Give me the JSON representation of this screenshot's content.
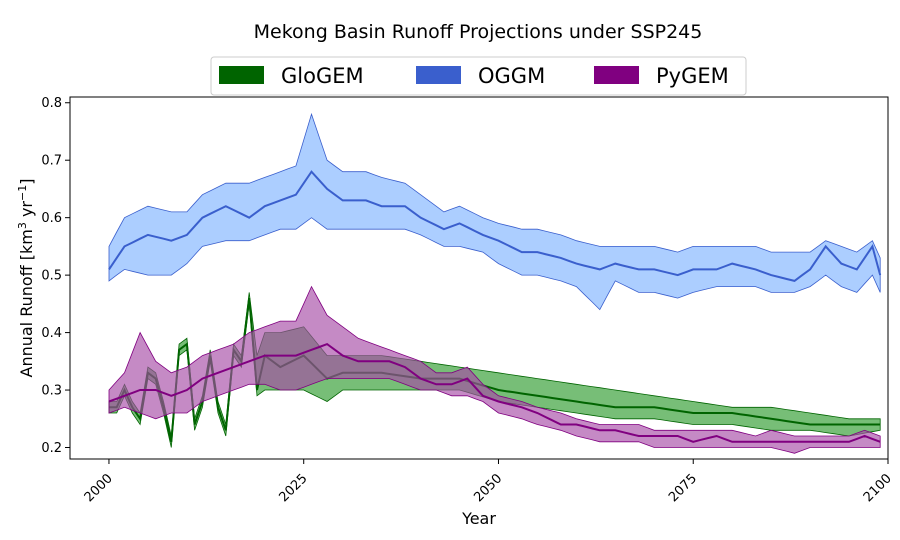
{
  "chart_data": {
    "type": "area",
    "title": "Mekong Basin Runoff Projections under SSP245",
    "xlabel": "Year",
    "ylabel_main": "Annual Runoff [km",
    "ylabel_sup1": "3",
    "ylabel_mid": " yr",
    "ylabel_sup2": "−1",
    "ylabel_end": "]",
    "xlim": [
      1995,
      2100
    ],
    "ylim": [
      0.18,
      0.81
    ],
    "xticks": [
      2000,
      2025,
      2050,
      2075,
      2100
    ],
    "xtick_labels": [
      "2000",
      "2025",
      "2050",
      "2075",
      "2100"
    ],
    "yticks": [
      0.2,
      0.3,
      0.4,
      0.5,
      0.6,
      0.7,
      0.8
    ],
    "ytick_labels": [
      "0.2",
      "0.3",
      "0.4",
      "0.5",
      "0.6",
      "0.7",
      "0.8"
    ],
    "grid": false,
    "legend_position": "top-center",
    "x_start": 2000,
    "x_end": 2099,
    "series": [
      {
        "name": "GloGEM",
        "line_color": "#006400",
        "fill_color": "#2e9b2e",
        "anchors": [
          [
            2000,
            0.27,
            0.26,
            0.28
          ],
          [
            2001,
            0.27,
            0.26,
            0.28
          ],
          [
            2002,
            0.3,
            0.29,
            0.31
          ],
          [
            2003,
            0.27,
            0.26,
            0.28
          ],
          [
            2004,
            0.25,
            0.24,
            0.26
          ],
          [
            2005,
            0.33,
            0.32,
            0.34
          ],
          [
            2006,
            0.32,
            0.31,
            0.33
          ],
          [
            2007,
            0.27,
            0.26,
            0.28
          ],
          [
            2008,
            0.21,
            0.2,
            0.22
          ],
          [
            2009,
            0.37,
            0.36,
            0.38
          ],
          [
            2010,
            0.38,
            0.37,
            0.39
          ],
          [
            2011,
            0.24,
            0.23,
            0.25
          ],
          [
            2012,
            0.28,
            0.27,
            0.29
          ],
          [
            2013,
            0.36,
            0.35,
            0.37
          ],
          [
            2014,
            0.27,
            0.26,
            0.28
          ],
          [
            2015,
            0.23,
            0.22,
            0.24
          ],
          [
            2016,
            0.37,
            0.36,
            0.38
          ],
          [
            2017,
            0.35,
            0.34,
            0.36
          ],
          [
            2018,
            0.46,
            0.45,
            0.47
          ],
          [
            2019,
            0.3,
            0.29,
            0.36
          ],
          [
            2020,
            0.36,
            0.3,
            0.4
          ],
          [
            2022,
            0.34,
            0.3,
            0.4
          ],
          [
            2025,
            0.36,
            0.3,
            0.41
          ],
          [
            2028,
            0.32,
            0.28,
            0.36
          ],
          [
            2030,
            0.33,
            0.3,
            0.36
          ],
          [
            2035,
            0.33,
            0.3,
            0.36
          ],
          [
            2040,
            0.32,
            0.3,
            0.35
          ],
          [
            2045,
            0.32,
            0.3,
            0.34
          ],
          [
            2050,
            0.3,
            0.28,
            0.33
          ],
          [
            2055,
            0.29,
            0.27,
            0.32
          ],
          [
            2060,
            0.28,
            0.26,
            0.31
          ],
          [
            2065,
            0.27,
            0.25,
            0.3
          ],
          [
            2070,
            0.27,
            0.25,
            0.29
          ],
          [
            2075,
            0.26,
            0.24,
            0.28
          ],
          [
            2080,
            0.26,
            0.24,
            0.27
          ],
          [
            2085,
            0.25,
            0.23,
            0.27
          ],
          [
            2090,
            0.24,
            0.23,
            0.26
          ],
          [
            2095,
            0.24,
            0.22,
            0.25
          ],
          [
            2099,
            0.24,
            0.23,
            0.25
          ]
        ]
      },
      {
        "name": "OGGM",
        "line_color": "#3a5fcd",
        "fill_color": "#7fb3ff",
        "anchors": [
          [
            2000,
            0.51,
            0.49,
            0.55
          ],
          [
            2002,
            0.55,
            0.51,
            0.6
          ],
          [
            2005,
            0.57,
            0.5,
            0.62
          ],
          [
            2008,
            0.56,
            0.5,
            0.61
          ],
          [
            2010,
            0.57,
            0.52,
            0.61
          ],
          [
            2012,
            0.6,
            0.55,
            0.64
          ],
          [
            2015,
            0.62,
            0.56,
            0.66
          ],
          [
            2018,
            0.6,
            0.56,
            0.66
          ],
          [
            2020,
            0.62,
            0.57,
            0.67
          ],
          [
            2022,
            0.63,
            0.58,
            0.68
          ],
          [
            2024,
            0.64,
            0.58,
            0.69
          ],
          [
            2026,
            0.68,
            0.6,
            0.78
          ],
          [
            2028,
            0.65,
            0.58,
            0.7
          ],
          [
            2030,
            0.63,
            0.58,
            0.68
          ],
          [
            2033,
            0.63,
            0.58,
            0.68
          ],
          [
            2035,
            0.62,
            0.58,
            0.67
          ],
          [
            2038,
            0.62,
            0.58,
            0.66
          ],
          [
            2040,
            0.6,
            0.57,
            0.64
          ],
          [
            2043,
            0.58,
            0.55,
            0.61
          ],
          [
            2045,
            0.59,
            0.55,
            0.62
          ],
          [
            2048,
            0.57,
            0.54,
            0.6
          ],
          [
            2050,
            0.56,
            0.52,
            0.59
          ],
          [
            2053,
            0.54,
            0.5,
            0.58
          ],
          [
            2055,
            0.54,
            0.5,
            0.58
          ],
          [
            2058,
            0.53,
            0.49,
            0.57
          ],
          [
            2060,
            0.52,
            0.48,
            0.56
          ],
          [
            2063,
            0.51,
            0.44,
            0.55
          ],
          [
            2065,
            0.52,
            0.49,
            0.55
          ],
          [
            2068,
            0.51,
            0.47,
            0.55
          ],
          [
            2070,
            0.51,
            0.47,
            0.55
          ],
          [
            2073,
            0.5,
            0.46,
            0.54
          ],
          [
            2075,
            0.51,
            0.47,
            0.55
          ],
          [
            2078,
            0.51,
            0.48,
            0.55
          ],
          [
            2080,
            0.52,
            0.48,
            0.55
          ],
          [
            2083,
            0.51,
            0.48,
            0.55
          ],
          [
            2085,
            0.5,
            0.47,
            0.54
          ],
          [
            2088,
            0.49,
            0.47,
            0.54
          ],
          [
            2090,
            0.51,
            0.48,
            0.54
          ],
          [
            2092,
            0.55,
            0.5,
            0.56
          ],
          [
            2094,
            0.52,
            0.48,
            0.55
          ],
          [
            2096,
            0.51,
            0.47,
            0.54
          ],
          [
            2098,
            0.55,
            0.5,
            0.56
          ],
          [
            2099,
            0.5,
            0.47,
            0.53
          ]
        ]
      },
      {
        "name": "PyGEM",
        "line_color": "#800080",
        "fill_color": "#a64ca6",
        "anchors": [
          [
            2000,
            0.28,
            0.26,
            0.3
          ],
          [
            2002,
            0.29,
            0.27,
            0.33
          ],
          [
            2004,
            0.3,
            0.26,
            0.4
          ],
          [
            2006,
            0.3,
            0.25,
            0.35
          ],
          [
            2008,
            0.29,
            0.26,
            0.33
          ],
          [
            2010,
            0.3,
            0.26,
            0.34
          ],
          [
            2012,
            0.32,
            0.28,
            0.36
          ],
          [
            2014,
            0.33,
            0.29,
            0.37
          ],
          [
            2016,
            0.34,
            0.3,
            0.38
          ],
          [
            2018,
            0.35,
            0.31,
            0.4
          ],
          [
            2020,
            0.36,
            0.31,
            0.41
          ],
          [
            2022,
            0.36,
            0.3,
            0.42
          ],
          [
            2024,
            0.36,
            0.3,
            0.42
          ],
          [
            2026,
            0.37,
            0.31,
            0.48
          ],
          [
            2028,
            0.38,
            0.32,
            0.43
          ],
          [
            2030,
            0.36,
            0.32,
            0.41
          ],
          [
            2032,
            0.35,
            0.32,
            0.39
          ],
          [
            2034,
            0.35,
            0.32,
            0.38
          ],
          [
            2036,
            0.35,
            0.32,
            0.37
          ],
          [
            2038,
            0.34,
            0.31,
            0.36
          ],
          [
            2040,
            0.32,
            0.3,
            0.35
          ],
          [
            2042,
            0.31,
            0.3,
            0.33
          ],
          [
            2044,
            0.31,
            0.29,
            0.33
          ],
          [
            2046,
            0.32,
            0.29,
            0.34
          ],
          [
            2048,
            0.29,
            0.28,
            0.31
          ],
          [
            2050,
            0.28,
            0.26,
            0.29
          ],
          [
            2053,
            0.27,
            0.25,
            0.28
          ],
          [
            2055,
            0.26,
            0.24,
            0.27
          ],
          [
            2058,
            0.24,
            0.23,
            0.26
          ],
          [
            2060,
            0.24,
            0.22,
            0.25
          ],
          [
            2063,
            0.23,
            0.21,
            0.24
          ],
          [
            2065,
            0.23,
            0.21,
            0.24
          ],
          [
            2068,
            0.22,
            0.21,
            0.24
          ],
          [
            2070,
            0.22,
            0.2,
            0.23
          ],
          [
            2073,
            0.22,
            0.2,
            0.23
          ],
          [
            2075,
            0.21,
            0.2,
            0.23
          ],
          [
            2078,
            0.22,
            0.2,
            0.23
          ],
          [
            2080,
            0.21,
            0.2,
            0.23
          ],
          [
            2083,
            0.21,
            0.2,
            0.22
          ],
          [
            2085,
            0.21,
            0.2,
            0.23
          ],
          [
            2088,
            0.21,
            0.19,
            0.22
          ],
          [
            2090,
            0.21,
            0.2,
            0.22
          ],
          [
            2093,
            0.21,
            0.2,
            0.22
          ],
          [
            2095,
            0.21,
            0.2,
            0.22
          ],
          [
            2097,
            0.22,
            0.2,
            0.23
          ],
          [
            2099,
            0.21,
            0.2,
            0.22
          ]
        ]
      }
    ]
  }
}
